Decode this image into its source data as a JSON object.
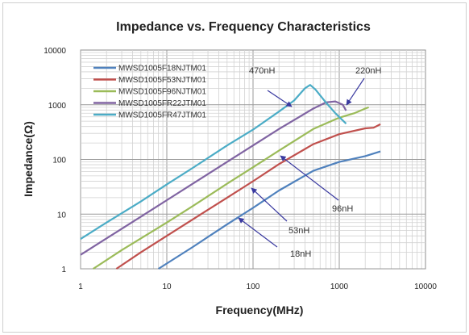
{
  "chart_data": {
    "type": "line",
    "title": "Impedance vs. Frequency Characteristics",
    "xlabel": "Frequency(MHz)",
    "ylabel": "Impedance(Ω)",
    "x_scale": "log",
    "y_scale": "log",
    "xlim": [
      1,
      10000
    ],
    "ylim": [
      1,
      10000
    ],
    "x_ticks": [
      "1",
      "10",
      "100",
      "1000",
      "10000"
    ],
    "y_ticks": [
      "1",
      "10",
      "100",
      "1000",
      "10000"
    ],
    "grid": true,
    "legend_position": "top-left",
    "series": [
      {
        "name": "MWSD1005F18NJTM01",
        "color": "#4f81bd",
        "points": [
          [
            8,
            1
          ],
          [
            20,
            2.5
          ],
          [
            50,
            6.5
          ],
          [
            100,
            13
          ],
          [
            200,
            27
          ],
          [
            500,
            62
          ],
          [
            1000,
            90
          ],
          [
            2000,
            115
          ],
          [
            3000,
            140
          ]
        ]
      },
      {
        "name": "MWSD1005F53NJTM01",
        "color": "#c0504d",
        "points": [
          [
            2.6,
            1
          ],
          [
            5,
            2
          ],
          [
            10,
            4
          ],
          [
            20,
            8
          ],
          [
            50,
            20
          ],
          [
            100,
            40
          ],
          [
            200,
            82
          ],
          [
            500,
            190
          ],
          [
            1000,
            290
          ],
          [
            2000,
            370
          ],
          [
            2500,
            380
          ],
          [
            3000,
            440
          ]
        ]
      },
      {
        "name": "MWSD1005F96NJTM01",
        "color": "#9bbb59",
        "points": [
          [
            1.4,
            1
          ],
          [
            3,
            2.2
          ],
          [
            10,
            7
          ],
          [
            20,
            14
          ],
          [
            50,
            36
          ],
          [
            100,
            72
          ],
          [
            200,
            145
          ],
          [
            500,
            360
          ],
          [
            1000,
            580
          ],
          [
            1500,
            700
          ],
          [
            2000,
            850
          ],
          [
            2200,
            900
          ]
        ]
      },
      {
        "name": "MWSD1005FR22JTM01",
        "color": "#8064a2",
        "points": [
          [
            1,
            1.8
          ],
          [
            2,
            3.6
          ],
          [
            5,
            9
          ],
          [
            10,
            18
          ],
          [
            20,
            36
          ],
          [
            50,
            90
          ],
          [
            100,
            180
          ],
          [
            200,
            360
          ],
          [
            500,
            850
          ],
          [
            700,
            1100
          ],
          [
            900,
            1150
          ],
          [
            1100,
            1000
          ],
          [
            1200,
            780
          ]
        ]
      },
      {
        "name": "MWSD1005FR47JTM01",
        "color": "#4bacc6",
        "points": [
          [
            1,
            3.5
          ],
          [
            2,
            7
          ],
          [
            5,
            17
          ],
          [
            10,
            35
          ],
          [
            20,
            70
          ],
          [
            50,
            180
          ],
          [
            100,
            350
          ],
          [
            200,
            750
          ],
          [
            300,
            1200
          ],
          [
            400,
            2000
          ],
          [
            460,
            2300
          ],
          [
            530,
            1900
          ],
          [
            700,
            1100
          ],
          [
            900,
            700
          ],
          [
            1200,
            450
          ]
        ]
      }
    ],
    "annotations": [
      "470nH",
      "220nH",
      "96nH",
      "53nH",
      "18nH"
    ]
  }
}
